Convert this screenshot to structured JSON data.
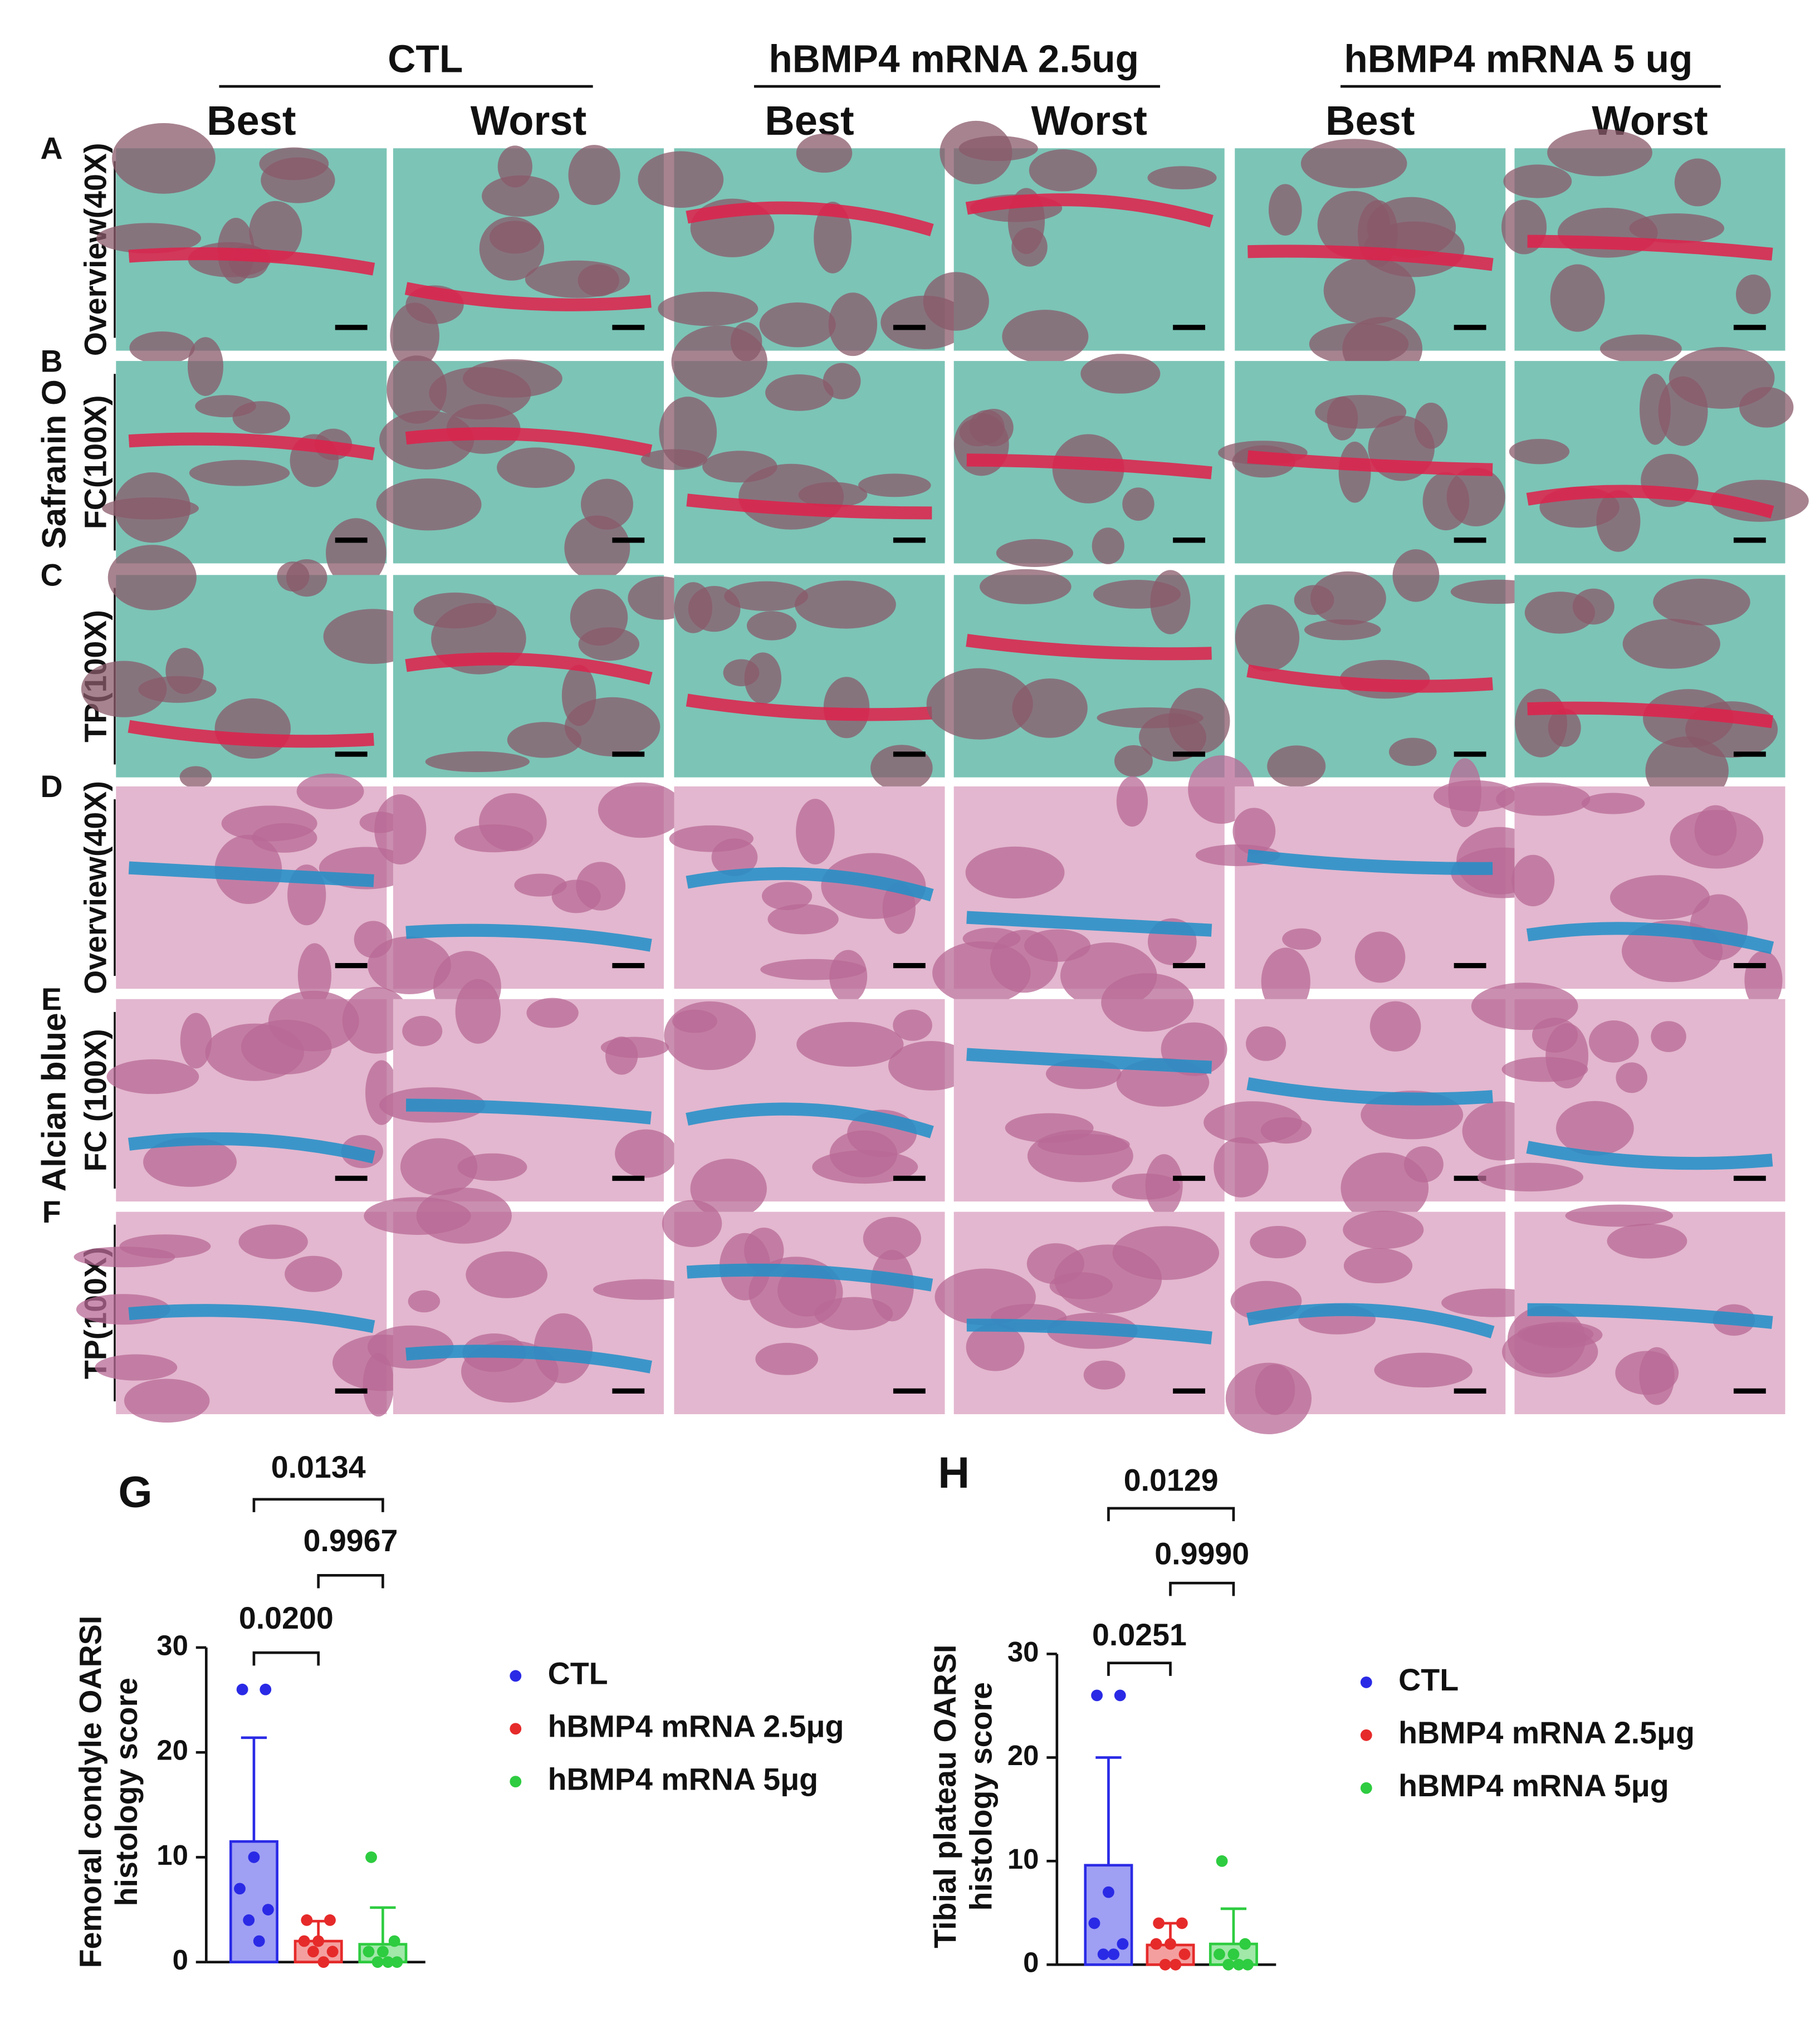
{
  "figure": {
    "groups": [
      "CTL",
      "hBMP4 mRNA 2.5ug",
      "hBMP4 mRNA 5 ug"
    ],
    "columns": [
      "Best",
      "Worst",
      "Best",
      "Worst",
      "Best",
      "Worst"
    ],
    "stains": [
      "Safranin O",
      "Alcian blue"
    ],
    "rows": [
      {
        "letter": "A",
        "label": "Overview(40X)"
      },
      {
        "letter": "B",
        "label": "FC(100X)"
      },
      {
        "letter": "C",
        "label": "TP(100X)"
      },
      {
        "letter": "D",
        "label": "Overview(40X)"
      },
      {
        "letter": "E",
        "label": "FC (100X)"
      },
      {
        "letter": "F",
        "label": "TP(100X)"
      }
    ]
  },
  "chart_data": [
    {
      "type": "bar",
      "panel": "G",
      "ylabel": [
        "Femoral condyle OARSI",
        "histology score"
      ],
      "ylim": [
        0,
        30
      ],
      "yticks": [
        0,
        10,
        20,
        30
      ],
      "comparisons": [
        "0.0134",
        "0.9967",
        "0.0200"
      ],
      "series": [
        {
          "name": "CTL",
          "color": "#2a2ae6",
          "values": [
            11.5
          ],
          "errors": [
            9.9
          ],
          "points": [
            26,
            26,
            10,
            7,
            5,
            4,
            2
          ]
        },
        {
          "name": "hBMP4 mRNA 2.5μg",
          "color": "#e62a2a",
          "values": [
            2
          ],
          "errors": [
            1.9
          ],
          "points": [
            4,
            4,
            2,
            2,
            1,
            1,
            0
          ]
        },
        {
          "name": "hBMP4 mRNA 5μg",
          "color": "#2ecc40",
          "values": [
            1.7
          ],
          "errors": [
            3.5
          ],
          "points": [
            10,
            2,
            1,
            1,
            0,
            0,
            0
          ]
        }
      ]
    },
    {
      "type": "bar",
      "panel": "H",
      "ylabel": [
        "Tibial plateau OARSI",
        "histology score"
      ],
      "ylim": [
        0,
        30
      ],
      "yticks": [
        0,
        10,
        20,
        30
      ],
      "comparisons": [
        "0.0129",
        "0.9990",
        "0.0251"
      ],
      "series": [
        {
          "name": "CTL",
          "color": "#2a2ae6",
          "values": [
            9.6
          ],
          "errors": [
            10.4
          ],
          "points": [
            26,
            26,
            7,
            4,
            2,
            1,
            1
          ]
        },
        {
          "name": "hBMP4 mRNA 2.5μg",
          "color": "#e62a2a",
          "values": [
            1.9
          ],
          "errors": [
            2.1
          ],
          "points": [
            4,
            4,
            2,
            2,
            1,
            0,
            0
          ]
        },
        {
          "name": "hBMP4 mRNA 5μg",
          "color": "#2ecc40",
          "values": [
            2
          ],
          "errors": [
            3.4
          ],
          "points": [
            10,
            2,
            1,
            1,
            0,
            0,
            0
          ]
        }
      ]
    }
  ]
}
